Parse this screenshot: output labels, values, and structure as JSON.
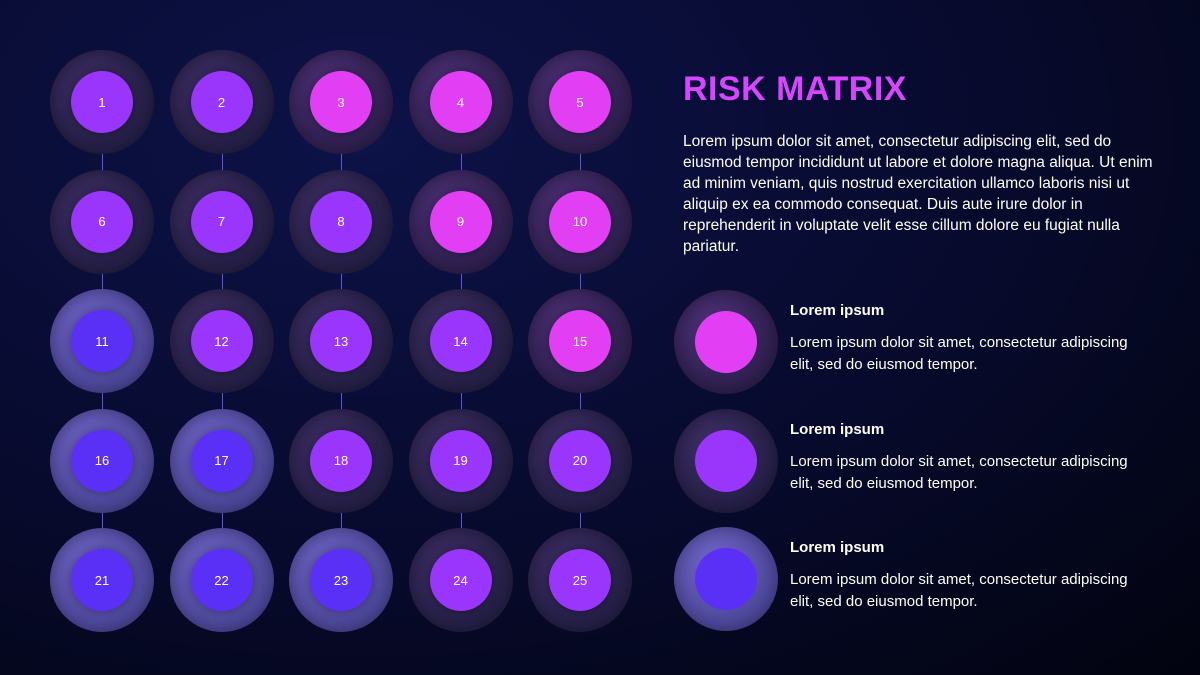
{
  "title": "RISK MATRIX",
  "intro": "Lorem ipsum dolor sit amet, consectetur adipiscing elit, sed do eiusmod tempor incididunt ut labore et dolore magna aliqua. Ut enim ad minim veniam, quis nostrud exercitation ullamco laboris nisi ut aliquip ex ea commodo consequat. Duis aute irure dolor in reprehenderit in voluptate velit esse cillum dolore eu fugiat nulla pariatur.",
  "colors": {
    "high": "#e23ff5",
    "medium": "#9a35fb",
    "low": "#5a30f6",
    "ring_high": "#4a2f73",
    "ring_medium": "#3c2d63",
    "ring_low": "#6c62c4",
    "title": "#d646ff"
  },
  "matrix": {
    "cells": [
      {
        "label": "1",
        "level": "medium"
      },
      {
        "label": "2",
        "level": "medium"
      },
      {
        "label": "3",
        "level": "high"
      },
      {
        "label": "4",
        "level": "high"
      },
      {
        "label": "5",
        "level": "high"
      },
      {
        "label": "6",
        "level": "medium"
      },
      {
        "label": "7",
        "level": "medium"
      },
      {
        "label": "8",
        "level": "medium"
      },
      {
        "label": "9",
        "level": "high"
      },
      {
        "label": "10",
        "level": "high"
      },
      {
        "label": "11",
        "level": "low"
      },
      {
        "label": "12",
        "level": "medium"
      },
      {
        "label": "13",
        "level": "medium"
      },
      {
        "label": "14",
        "level": "medium"
      },
      {
        "label": "15",
        "level": "high"
      },
      {
        "label": "16",
        "level": "low"
      },
      {
        "label": "17",
        "level": "low"
      },
      {
        "label": "18",
        "level": "medium"
      },
      {
        "label": "19",
        "level": "medium"
      },
      {
        "label": "20",
        "level": "medium"
      },
      {
        "label": "21",
        "level": "low"
      },
      {
        "label": "22",
        "level": "low"
      },
      {
        "label": "23",
        "level": "low"
      },
      {
        "label": "24",
        "level": "medium"
      },
      {
        "label": "25",
        "level": "medium"
      }
    ]
  },
  "legend": [
    {
      "level": "high",
      "title": "Lorem ipsum",
      "desc": "Lorem ipsum dolor sit amet, consectetur adipiscing elit, sed do eiusmod tempor."
    },
    {
      "level": "medium",
      "title": "Lorem ipsum",
      "desc": "Lorem ipsum dolor sit amet, consectetur adipiscing elit, sed do eiusmod tempor."
    },
    {
      "level": "low",
      "title": "Lorem ipsum",
      "desc": "Lorem ipsum dolor sit amet, consectetur adipiscing elit, sed do eiusmod tempor."
    }
  ]
}
